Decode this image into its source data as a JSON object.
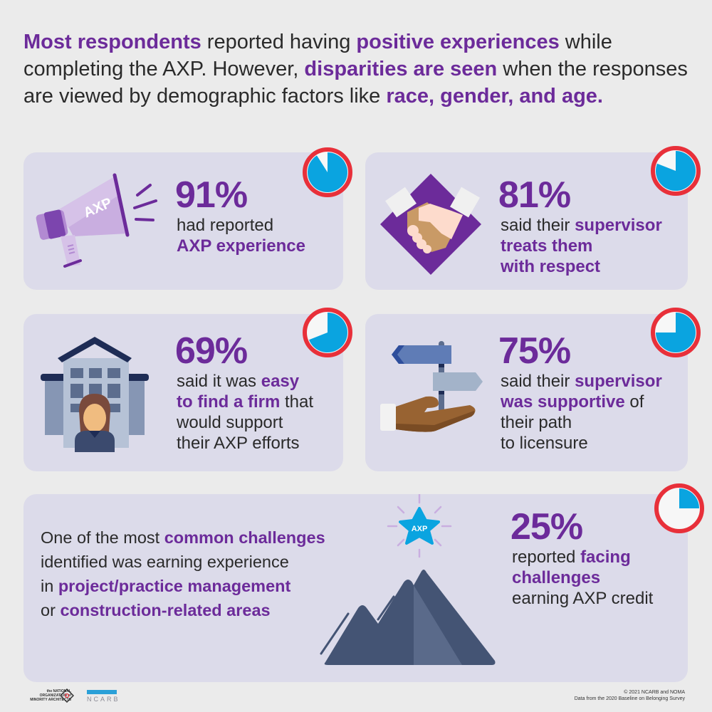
{
  "headline": {
    "segments": [
      {
        "text": "Most respondents",
        "bold": true
      },
      {
        "text": " reported having ",
        "bold": false
      },
      {
        "text": "positive experiences",
        "bold": true
      },
      {
        "text": " while completing the AXP. However, ",
        "bold": false
      },
      {
        "text": "disparities are seen",
        "bold": true
      },
      {
        "text": " when the responses are viewed by demographic factors like ",
        "bold": false
      },
      {
        "text": "race, gender, and age.",
        "bold": true
      }
    ]
  },
  "cards": [
    {
      "id": "axp-experience",
      "percent": "91%",
      "value": 91,
      "icon": "megaphone-icon",
      "icon_text": "AXP",
      "lines": [
        [
          {
            "t": "had reported",
            "b": false
          }
        ],
        [
          {
            "t": "AXP experience",
            "b": true
          }
        ]
      ]
    },
    {
      "id": "supervisor-respect",
      "percent": "81%",
      "value": 81,
      "icon": "handshake-icon",
      "lines": [
        [
          {
            "t": "said their ",
            "b": false
          },
          {
            "t": "supervisor",
            "b": true
          }
        ],
        [
          {
            "t": "treats them",
            "b": true
          }
        ],
        [
          {
            "t": "with respect",
            "b": true
          }
        ]
      ]
    },
    {
      "id": "easy-find-firm",
      "percent": "69%",
      "value": 69,
      "icon": "building-person-icon",
      "lines": [
        [
          {
            "t": "said it was ",
            "b": false
          },
          {
            "t": "easy",
            "b": true
          }
        ],
        [
          {
            "t": "to find a firm",
            "b": true
          },
          {
            "t": " that",
            "b": false
          }
        ],
        [
          {
            "t": "would support",
            "b": false
          }
        ],
        [
          {
            "t": "their AXP efforts",
            "b": false
          }
        ]
      ]
    },
    {
      "id": "supervisor-supportive",
      "percent": "75%",
      "value": 75,
      "icon": "signpost-hand-icon",
      "lines": [
        [
          {
            "t": "said their ",
            "b": false
          },
          {
            "t": "supervisor",
            "b": true
          }
        ],
        [
          {
            "t": "was supportive",
            "b": true
          },
          {
            "t": " of",
            "b": false
          }
        ],
        [
          {
            "t": "their path",
            "b": false
          }
        ],
        [
          {
            "t": "to licensure",
            "b": false
          }
        ]
      ]
    }
  ],
  "bottom_card": {
    "challenge_text": [
      [
        {
          "t": "One of the most ",
          "b": false
        },
        {
          "t": "common challenges",
          "b": true
        }
      ],
      [
        {
          "t": "identified was earning experience",
          "b": false
        }
      ],
      [
        {
          "t": "in ",
          "b": false
        },
        {
          "t": "project/practice management",
          "b": true
        }
      ],
      [
        {
          "t": "or ",
          "b": false
        },
        {
          "t": "construction-related areas",
          "b": true
        }
      ]
    ],
    "percent": "25%",
    "value": 25,
    "icon": "mountain-star-icon",
    "star_text": "AXP",
    "lines": [
      [
        {
          "t": "reported ",
          "b": false
        },
        {
          "t": "facing",
          "b": true
        }
      ],
      [
        {
          "t": "challenges",
          "b": true
        }
      ],
      [
        {
          "t": "earning AXP credit",
          "b": false
        }
      ]
    ]
  },
  "footer": {
    "noma_logo_text": "the NATIONAL ORGANIZATION of MINORITY ARCHITECTS",
    "ncarb_logo_text": "NCARB",
    "copyright": "© 2021 NCARB and NOMA",
    "source": "Data from the 2020 Baseline on Belonging Survey"
  },
  "colors": {
    "accent_purple": "#6c2b9a",
    "card_bg": "#dcdbea",
    "page_bg": "#ebebeb",
    "gauge_ring": "#e8303a",
    "gauge_fill": "#0aa4e0",
    "gauge_empty": "#f7f7f7"
  }
}
